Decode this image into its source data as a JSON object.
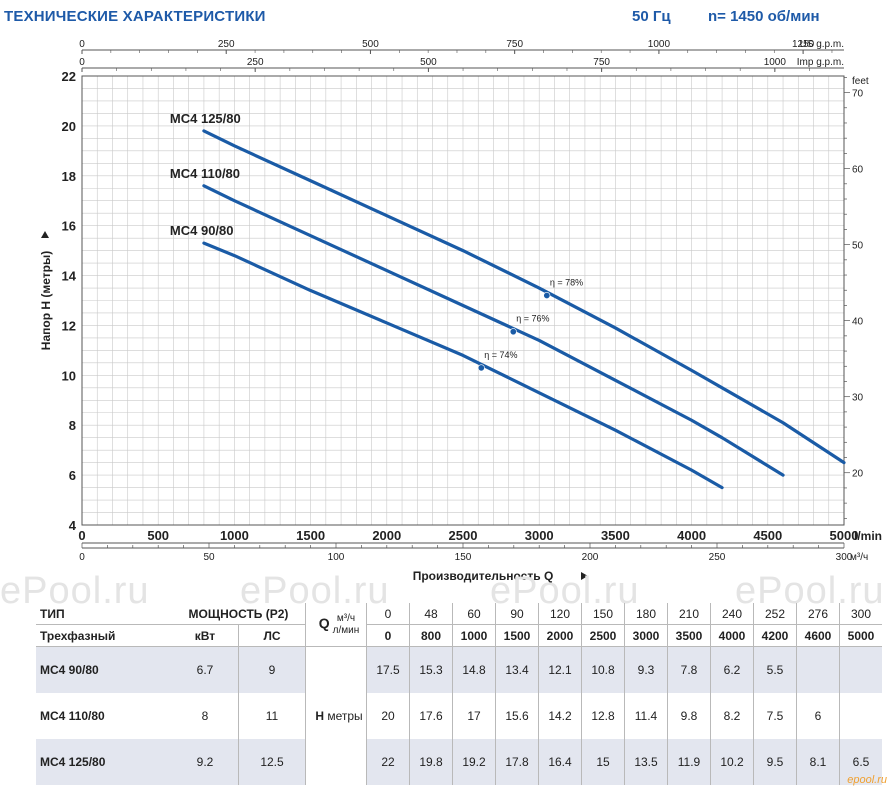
{
  "header": {
    "title": "ТЕХНИЧЕСКИЕ ХАРАКТЕРИСТИКИ",
    "freq": "50 Гц",
    "speed": "n= 1450 об/мин"
  },
  "chart_data": {
    "type": "line",
    "title": "",
    "xlabel": "Производительность Q",
    "ylabel": "Напор H (метры)",
    "xlim": [
      0,
      5000
    ],
    "ylim": [
      4,
      22
    ],
    "x_unit": "l/min",
    "y_ticks": [
      "4",
      "6",
      "8",
      "10",
      "12",
      "14",
      "16",
      "18",
      "20",
      "22"
    ],
    "x_ticks": [
      "0",
      "500",
      "1000",
      "1500",
      "2000",
      "2500",
      "3000",
      "3500",
      "4000",
      "4500",
      "5000"
    ],
    "secondary_axes": {
      "us_gpm": {
        "label": "US g.p.m.",
        "ticks": [
          "0",
          "250",
          "500",
          "750",
          "1000",
          "1250"
        ]
      },
      "imp_gpm": {
        "label": "Imp g.p.m.",
        "ticks": [
          "0",
          "250",
          "500",
          "750",
          "1000"
        ]
      },
      "m3h": {
        "label": "м³/ч",
        "ticks": [
          "0",
          "50",
          "100",
          "150",
          "200",
          "250",
          "300"
        ]
      },
      "feet": {
        "label": "feet",
        "ticks": [
          "20",
          "30",
          "40",
          "50",
          "60",
          "70"
        ]
      }
    },
    "grid": true,
    "series": [
      {
        "name": "MC4 125/80",
        "x": [
          800,
          1000,
          1500,
          2000,
          2500,
          3000,
          3500,
          4000,
          4200,
          4600,
          5000
        ],
        "y": [
          19.8,
          19.2,
          17.8,
          16.4,
          15,
          13.5,
          11.9,
          10.2,
          9.5,
          8.1,
          6.5
        ],
        "efficiency": {
          "label": "η = 78%",
          "x": 3050,
          "y": 13.2
        }
      },
      {
        "name": "MC4 110/80",
        "x": [
          800,
          1000,
          1500,
          2000,
          2500,
          3000,
          3500,
          4000,
          4200,
          4600
        ],
        "y": [
          17.6,
          17,
          15.6,
          14.2,
          12.8,
          11.4,
          9.8,
          8.2,
          7.5,
          6
        ],
        "efficiency": {
          "label": "η = 76%",
          "x": 2830,
          "y": 11.75
        }
      },
      {
        "name": "MC4 90/80",
        "x": [
          800,
          1000,
          1500,
          2000,
          2500,
          3000,
          3500,
          4000,
          4200
        ],
        "y": [
          15.3,
          14.8,
          13.4,
          12.1,
          10.8,
          9.3,
          7.8,
          6.2,
          5.5
        ],
        "efficiency": {
          "label": "η = 74%",
          "x": 2620,
          "y": 10.3
        }
      }
    ]
  },
  "table": {
    "type_label": "ТИП",
    "phase_label": "Трехфазный",
    "power_label": "МОЩНОСТЬ (P2)",
    "kw_label": "кВт",
    "hp_label": "ЛС",
    "q_letter": "Q",
    "q_unit1": "м³/ч",
    "q_unit2": "л/мин",
    "h_letter": "H",
    "h_unit": "метры",
    "m3h": [
      "0",
      "48",
      "60",
      "90",
      "120",
      "150",
      "180",
      "210",
      "240",
      "252",
      "276",
      "300"
    ],
    "lmin": [
      "0",
      "800",
      "1000",
      "1500",
      "2000",
      "2500",
      "3000",
      "3500",
      "4000",
      "4200",
      "4600",
      "5000"
    ],
    "rows": [
      {
        "model": "MC4  90/80",
        "kw": "6.7",
        "hp": "9",
        "h": [
          "17.5",
          "15.3",
          "14.8",
          "13.4",
          "12.1",
          "10.8",
          "9.3",
          "7.8",
          "6.2",
          "5.5",
          "",
          ""
        ]
      },
      {
        "model": "MC4  110/80",
        "kw": "8",
        "hp": "11",
        "h": [
          "20",
          "17.6",
          "17",
          "15.6",
          "14.2",
          "12.8",
          "11.4",
          "9.8",
          "8.2",
          "7.5",
          "6",
          ""
        ]
      },
      {
        "model": "MC4  125/80",
        "kw": "9.2",
        "hp": "12.5",
        "h": [
          "22",
          "19.8",
          "19.2",
          "17.8",
          "16.4",
          "15",
          "13.5",
          "11.9",
          "10.2",
          "9.5",
          "8.1",
          "6.5"
        ]
      }
    ]
  },
  "watermarks": [
    "ePool.ru",
    "ePool.ru",
    "ePool.ru",
    "ePool.ru",
    "ePool.ru"
  ],
  "corner_logo": "epool.ru",
  "colors": {
    "curve": "#1a5ba6",
    "grid": "#c9c9c9",
    "header": "#1e5aa8",
    "shade": "#e3e6ef"
  }
}
